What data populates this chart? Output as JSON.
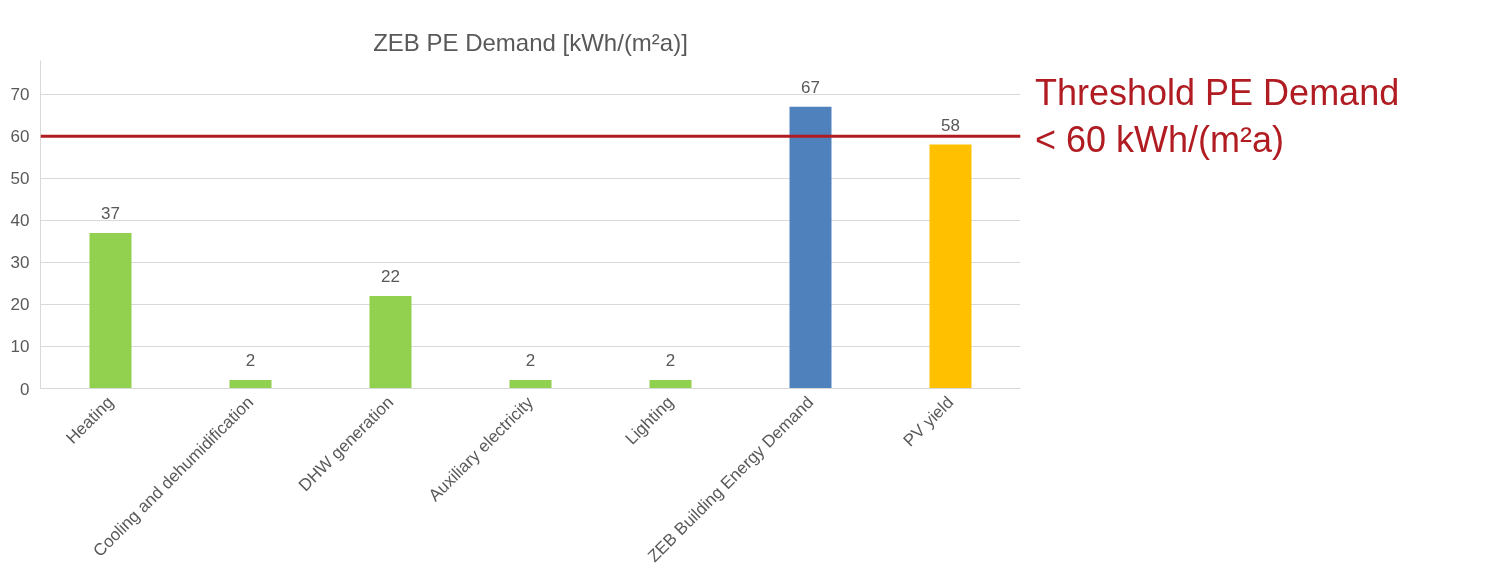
{
  "chart_data": {
    "type": "bar",
    "title": "ZEB PE Demand [kWh/(m²a)]",
    "categories": [
      "Heating",
      "Cooling and dehumidification",
      "DHW generation",
      "Auxiliary electricity",
      "Lighting",
      "ZEB Building Energy Demand",
      "PV yield"
    ],
    "values": [
      37,
      2,
      22,
      2,
      2,
      67,
      58
    ],
    "colors": [
      "#92d050",
      "#92d050",
      "#92d050",
      "#92d050",
      "#92d050",
      "#4f81bd",
      "#ffc000"
    ],
    "ylim": [
      0,
      78
    ],
    "yticks": [
      0,
      10,
      20,
      30,
      40,
      50,
      60,
      70
    ],
    "grid": "y",
    "data_labels": true,
    "ref_lines": [
      {
        "axis": "y",
        "value": 60,
        "label": "Threshold PE Demand\n< 60 kWh/(m²a)",
        "color": "#b01c22"
      }
    ]
  }
}
